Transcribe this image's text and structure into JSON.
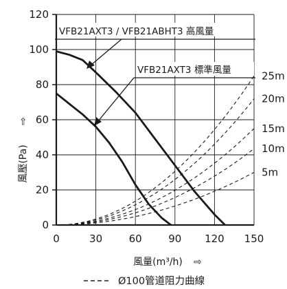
{
  "chart_data": {
    "type": "line",
    "xlabel": "風量(m³/h)",
    "ylabel": "風壓(Pa)",
    "xlim": [
      0,
      150
    ],
    "ylim": [
      0,
      120
    ],
    "xticks": [
      0,
      30,
      60,
      90,
      120,
      150
    ],
    "yticks": [
      0,
      20,
      40,
      60,
      80,
      100,
      120
    ],
    "x_tick_labels": [
      "0",
      "30",
      "60",
      "90",
      "120",
      "150"
    ],
    "y_tick_labels": [
      "0",
      "20",
      "40",
      "60",
      "80",
      "100",
      "120"
    ],
    "grid": true,
    "series": [
      {
        "name": "VFB21AXT3 / VFB21ABHT3 高風量",
        "style": "solid",
        "x": [
          0,
          10,
          20,
          30,
          45,
          60,
          75,
          90,
          105,
          120,
          128
        ],
        "y": [
          99,
          97,
          94,
          87,
          76,
          64,
          49,
          34,
          19,
          6,
          0
        ]
      },
      {
        "name": "VFB21AXT3 標準風量",
        "style": "solid",
        "x": [
          0,
          10,
          20,
          30,
          40,
          50,
          60,
          70,
          80,
          87
        ],
        "y": [
          75,
          69,
          63,
          56,
          47,
          36,
          23,
          12,
          4,
          0
        ]
      },
      {
        "name": "5m",
        "style": "dashed",
        "x": [
          0,
          30,
          60,
          90,
          120,
          150
        ],
        "y": [
          0,
          1.2,
          4.8,
          10.8,
          19.2,
          30
        ]
      },
      {
        "name": "10m",
        "style": "dashed",
        "x": [
          0,
          30,
          60,
          90,
          120,
          150
        ],
        "y": [
          0,
          1.7,
          7,
          15.7,
          28,
          43.5
        ]
      },
      {
        "name": "15m",
        "style": "dashed",
        "x": [
          0,
          30,
          60,
          90,
          120,
          150
        ],
        "y": [
          0,
          2.2,
          8.8,
          19.8,
          35.2,
          55
        ]
      },
      {
        "name": "20m",
        "style": "dashed",
        "x": [
          0,
          30,
          60,
          90,
          120,
          150
        ],
        "y": [
          0,
          2.9,
          11.6,
          26,
          46.2,
          72
        ]
      },
      {
        "name": "25m",
        "style": "dashed",
        "x": [
          0,
          30,
          60,
          90,
          120,
          150
        ],
        "y": [
          0,
          3.4,
          13.6,
          30.6,
          54.4,
          85
        ]
      }
    ],
    "annotations": [
      "VFB21AXT3 / VFB21ABHT3 高風量",
      "VFB21AXT3 標準風量"
    ],
    "legend": {
      "sample": "- - - -",
      "text": "Ø100管道阻力曲線",
      "placement": "bottom"
    }
  },
  "axis_arrow_glyph": "⇨",
  "colors": {
    "line": "#1a1a1a",
    "grid": "#1a1a1a",
    "background": "#ffffff"
  }
}
